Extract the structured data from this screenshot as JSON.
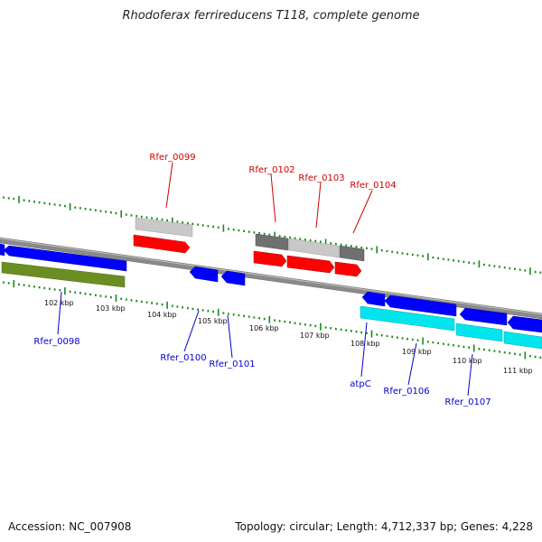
{
  "title": "Rhodoferax ferrireducens T118, complete genome",
  "footer": {
    "accession": "Accession: NC_007908",
    "topology": "Topology: circular; Length: 4,712,337 bp; Genes: 4,228"
  },
  "colors": {
    "forward_label": "#cc0000",
    "reverse_label": "#0000cc",
    "backbone": "#808080",
    "tick": "#1a8a1a",
    "red_gene": "#ff0000",
    "blue_gene": "#0000ff",
    "cyan_gene": "#00e5ee",
    "olive_gene": "#6b8e23",
    "light_gray_gene": "#c8c8c8",
    "dark_gray_gene": "#707070"
  },
  "kbp_labels": [
    "102 kbp",
    "103 kbp",
    "104 kbp",
    "105 kbp",
    "106 kbp",
    "107 kbp",
    "108 kbp",
    "109 kbp",
    "110 kbp",
    "111 kbp"
  ],
  "gene_labels": {
    "forward": [
      "Rfer_0099",
      "Rfer_0102",
      "Rfer_0103",
      "Rfer_0104"
    ],
    "reverse": [
      "Rfer_0098",
      "Rfer_0100",
      "Rfer_0101",
      "atpC",
      "Rfer_0106",
      "Rfer_0107"
    ]
  }
}
